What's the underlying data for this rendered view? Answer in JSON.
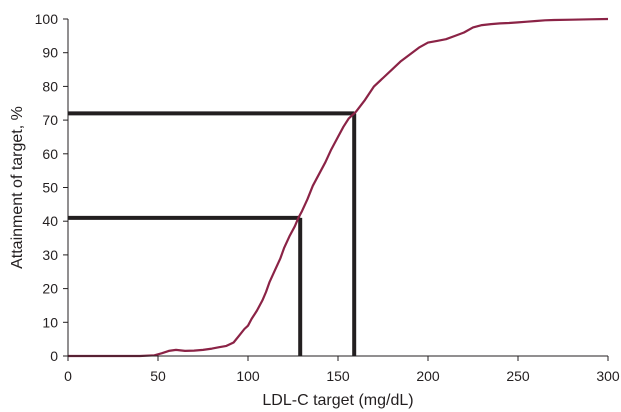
{
  "chart_data": {
    "type": "line",
    "title": "",
    "xlabel": "LDL-C target (mg/dL)",
    "ylabel": "Attainment of target, %",
    "xlim": [
      0,
      300
    ],
    "ylim": [
      0,
      100
    ],
    "xticks": [
      0,
      50,
      100,
      150,
      200,
      250,
      300
    ],
    "yticks": [
      0,
      10,
      20,
      30,
      40,
      50,
      60,
      70,
      80,
      90,
      100
    ],
    "grid": false,
    "legend": "none",
    "colors": {
      "curve": "#8b2346",
      "reference": "#231f20",
      "axis": "#231f20"
    },
    "series": [
      {
        "x": [
          0,
          20,
          40,
          48,
          52,
          56,
          60,
          65,
          70,
          75,
          80,
          84,
          88,
          92,
          95,
          98,
          100,
          102,
          105,
          108,
          110,
          112,
          115,
          118,
          120,
          123,
          126,
          128,
          130,
          133,
          136,
          140,
          143,
          146,
          150,
          153,
          156,
          160,
          165,
          170,
          175,
          180,
          185,
          190,
          195,
          200,
          205,
          210,
          215,
          220,
          225,
          230,
          235,
          240,
          245,
          250,
          255,
          260,
          265,
          270,
          280,
          290,
          300
        ],
        "y": [
          0,
          0,
          0,
          0.2,
          0.8,
          1.5,
          1.8,
          1.5,
          1.6,
          1.8,
          2.2,
          2.6,
          3.0,
          4.0,
          6.0,
          8.0,
          9.0,
          11.0,
          13.5,
          16.5,
          19.0,
          22.0,
          25.5,
          29.0,
          32.0,
          35.5,
          38.5,
          41.0,
          43.0,
          46.5,
          50.5,
          54.5,
          57.5,
          61.0,
          65.0,
          68.0,
          70.5,
          72.5,
          76.0,
          80.0,
          82.5,
          85.0,
          87.5,
          89.5,
          91.5,
          93.0,
          93.5,
          94.0,
          95.0,
          96.0,
          97.5,
          98.2,
          98.5,
          98.7,
          98.8,
          99.0,
          99.2,
          99.4,
          99.6,
          99.7,
          99.8,
          99.9,
          100
        ]
      }
    ],
    "reference_lines": [
      {
        "x": 129,
        "y": 41
      },
      {
        "x": 159,
        "y": 72
      }
    ]
  }
}
